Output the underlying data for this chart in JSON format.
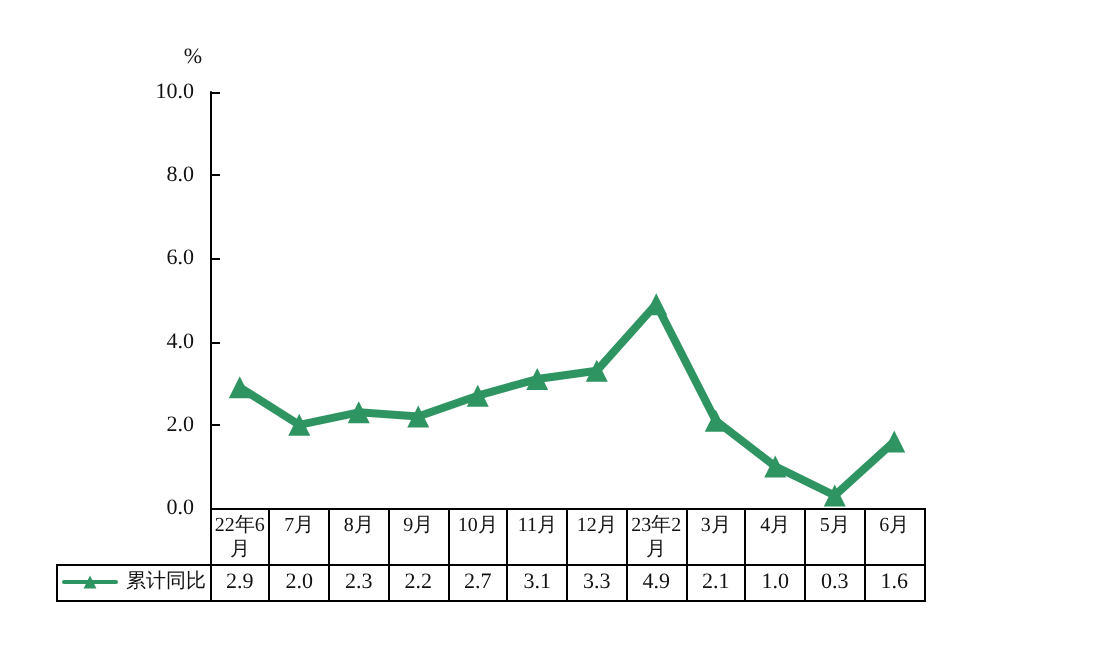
{
  "chart_data": {
    "type": "line",
    "ylabel": "%",
    "categories": [
      "22年6月",
      "7月",
      "8月",
      "9月",
      "10月",
      "11月",
      "12月",
      "23年2月",
      "3月",
      "4月",
      "5月",
      "6月"
    ],
    "series": [
      {
        "name": "累计同比",
        "color": "#2e9462",
        "values": [
          2.9,
          2.0,
          2.3,
          2.2,
          2.7,
          3.1,
          3.3,
          4.9,
          2.1,
          1.0,
          0.3,
          1.6
        ],
        "value_labels": [
          "2.9",
          "2.0",
          "2.3",
          "2.2",
          "2.7",
          "3.1",
          "3.3",
          "4.9",
          "2.1",
          "1.0",
          "0.3",
          "1.6"
        ]
      }
    ],
    "ylim": [
      0,
      10
    ],
    "yticks": [
      {
        "value": 0,
        "label": "0.0"
      },
      {
        "value": 2,
        "label": "2.0"
      },
      {
        "value": 4,
        "label": "4.0"
      },
      {
        "value": 6,
        "label": "6.0"
      },
      {
        "value": 8,
        "label": "8.0"
      },
      {
        "value": 10,
        "label": "10.0"
      }
    ],
    "grid": false,
    "legend": "bottom left",
    "marker": "triangle",
    "line_style": "solid"
  }
}
